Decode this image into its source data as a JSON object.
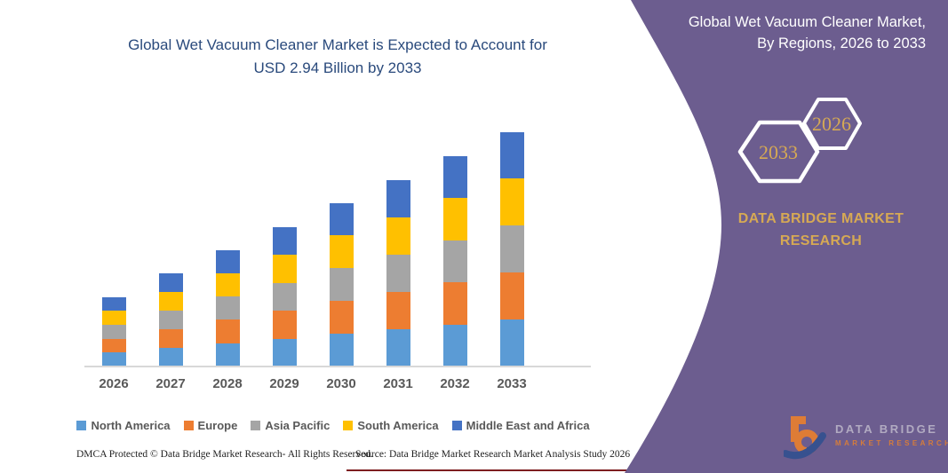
{
  "chart": {
    "title": "Global Wet Vacuum Cleaner Market is Expected to Account for USD 2.94 Billion by 2033",
    "title_color": "#2a4a7c"
  },
  "chart_data": {
    "type": "bar",
    "stacked": true,
    "title": "Global Wet Vacuum Cleaner Market is Expected to Account for USD 2.94 Billion by 2033",
    "unit": "USD Billion",
    "categories": [
      "2026",
      "2027",
      "2028",
      "2029",
      "2030",
      "2031",
      "2032",
      "2033"
    ],
    "series": [
      {
        "name": "North America",
        "color": "#5B9BD5",
        "values": [
          0.174,
          0.234,
          0.292,
          0.35,
          0.41,
          0.468,
          0.528,
          0.588
        ]
      },
      {
        "name": "Europe",
        "color": "#ED7D31",
        "values": [
          0.174,
          0.234,
          0.292,
          0.35,
          0.41,
          0.468,
          0.528,
          0.588
        ]
      },
      {
        "name": "Asia Pacific",
        "color": "#A5A5A5",
        "values": [
          0.174,
          0.234,
          0.292,
          0.35,
          0.41,
          0.468,
          0.528,
          0.588
        ]
      },
      {
        "name": "South America",
        "color": "#FFC000",
        "values": [
          0.174,
          0.234,
          0.292,
          0.35,
          0.41,
          0.468,
          0.528,
          0.588
        ]
      },
      {
        "name": "Middle East and Africa",
        "color": "#4472C4",
        "values": [
          0.174,
          0.234,
          0.292,
          0.35,
          0.41,
          0.468,
          0.528,
          0.588
        ]
      }
    ],
    "totals": [
      0.87,
      1.17,
      1.46,
      1.75,
      2.05,
      2.34,
      2.64,
      2.94
    ],
    "xlabel": "",
    "ylabel": "",
    "y_axis_visible": false,
    "grid": false,
    "legend_position": "bottom"
  },
  "footer": {
    "dmca": "DMCA Protected © Data Bridge Market Research-  All Rights Reserved.",
    "source": "Source: Data Bridge Market Research  Market Analysis Study 2026"
  },
  "panel": {
    "background": "#6c5d8f",
    "accent": "#d6a954",
    "title_line1": "Global Wet Vacuum Cleaner Market,",
    "title_line2": "By Regions, 2026 to 2033",
    "hexagons": [
      {
        "label": "2033"
      },
      {
        "label": "2026"
      }
    ],
    "brand_text": "DATA BRIDGE MARKET RESEARCH",
    "logo": {
      "primary": "DATA BRIDGE",
      "secondary": "MARKET RESEARCH"
    }
  }
}
